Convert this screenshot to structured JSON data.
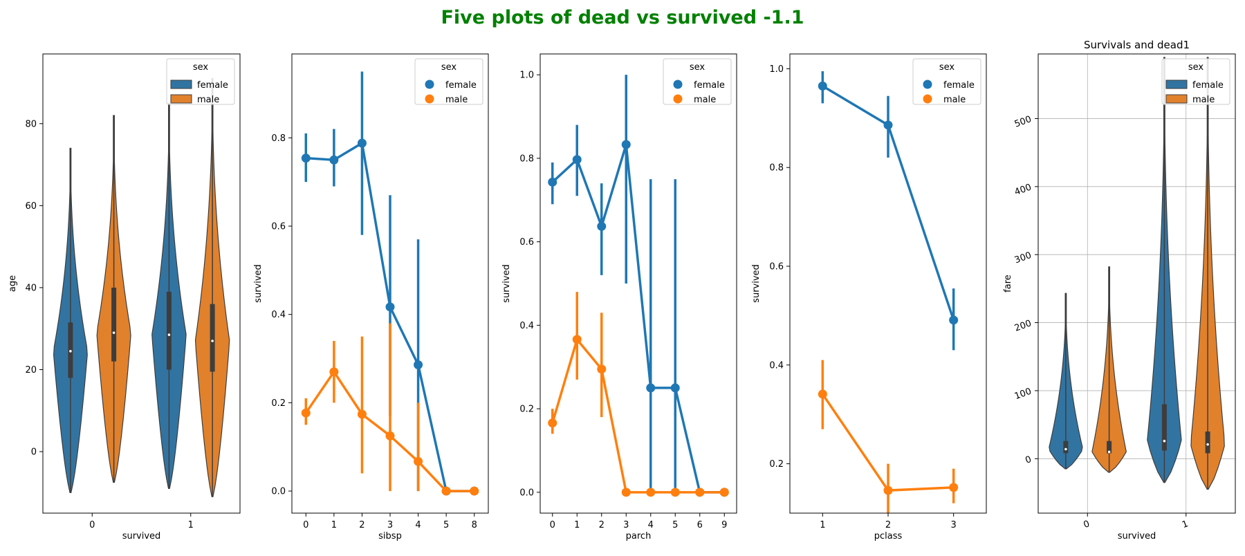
{
  "suptitle": "Five plots of dead vs survived -1.1",
  "colors": {
    "female": "#1f77b4",
    "male": "#ff7f0e",
    "violin_female": "#3274a1",
    "violin_male": "#e1812c",
    "suptitle": "#008000"
  },
  "chart_data": [
    {
      "type": "violin",
      "title": "",
      "xlabel": "survived",
      "ylabel": "age",
      "categories": [
        "0",
        "1"
      ],
      "ylim": [
        -15,
        97
      ],
      "yticks": [
        0,
        20,
        40,
        60,
        80
      ],
      "grid": false,
      "legend": {
        "title": "sex",
        "entries": [
          "female",
          "male"
        ],
        "placement": "top-right"
      },
      "series": [
        {
          "name": "female",
          "values": [
            {
              "x": "0",
              "min": -10,
              "q1": 18,
              "median": 24.5,
              "q3": 31.5,
              "max": 74
            },
            {
              "x": "1",
              "min": -9,
              "q1": 20,
              "median": 28.5,
              "q3": 39,
              "max": 85
            }
          ]
        },
        {
          "name": "male",
          "values": [
            {
              "x": "0",
              "min": -7.5,
              "q1": 22,
              "median": 29,
              "q3": 40,
              "max": 82
            },
            {
              "x": "1",
              "min": -11,
              "q1": 19.5,
              "median": 27,
              "q3": 36,
              "max": 91
            }
          ]
        }
      ]
    },
    {
      "type": "point",
      "title": "",
      "xlabel": "sibsp",
      "ylabel": "survived",
      "categories": [
        "0",
        "1",
        "2",
        "3",
        "4",
        "5",
        "8"
      ],
      "ylim": [
        -0.05,
        0.99
      ],
      "yticks": [
        0.0,
        0.2,
        0.4,
        0.6,
        0.8
      ],
      "grid": false,
      "legend": {
        "title": "sex",
        "entries": [
          "female",
          "male"
        ],
        "placement": "top-right"
      },
      "series": [
        {
          "name": "female",
          "values": [
            0.754,
            0.75,
            0.788,
            0.417,
            0.286,
            0.0,
            0.0
          ],
          "ci": [
            [
              0.7,
              0.81
            ],
            [
              0.69,
              0.82
            ],
            [
              0.58,
              0.95
            ],
            [
              0.17,
              0.67
            ],
            [
              0.0,
              0.57
            ],
            [
              0.0,
              0.0
            ],
            [
              0.0,
              0.0
            ]
          ]
        },
        {
          "name": "male",
          "values": [
            0.177,
            0.27,
            0.174,
            0.125,
            0.067,
            0.0,
            0.0
          ],
          "ci": [
            [
              0.15,
              0.21
            ],
            [
              0.2,
              0.34
            ],
            [
              0.04,
              0.35
            ],
            [
              0.0,
              0.38
            ],
            [
              0.0,
              0.2
            ],
            [
              0.0,
              0.0
            ],
            [
              0.0,
              0.0
            ]
          ]
        }
      ]
    },
    {
      "type": "point",
      "title": "",
      "xlabel": "parch",
      "ylabel": "survived",
      "categories": [
        "0",
        "1",
        "2",
        "3",
        "4",
        "5",
        "6",
        "9"
      ],
      "ylim": [
        -0.05,
        1.05
      ],
      "yticks": [
        0.0,
        0.2,
        0.4,
        0.6,
        0.8,
        1.0
      ],
      "grid": false,
      "legend": {
        "title": "sex",
        "entries": [
          "female",
          "male"
        ],
        "placement": "top-right"
      },
      "series": [
        {
          "name": "female",
          "values": [
            0.743,
            0.797,
            0.637,
            0.833,
            0.25,
            0.25,
            0.0,
            0.0
          ],
          "ci": [
            [
              0.69,
              0.79
            ],
            [
              0.71,
              0.88
            ],
            [
              0.52,
              0.74
            ],
            [
              0.5,
              1.0
            ],
            [
              0.0,
              0.75
            ],
            [
              0.0,
              0.75
            ],
            [
              0.0,
              0.0
            ],
            [
              0.0,
              0.0
            ]
          ]
        },
        {
          "name": "male",
          "values": [
            0.166,
            0.366,
            0.295,
            0.0,
            0.0,
            0.0,
            0.0,
            0.0
          ],
          "ci": [
            [
              0.14,
              0.2
            ],
            [
              0.27,
              0.48
            ],
            [
              0.18,
              0.43
            ],
            [
              0.0,
              0.0
            ],
            [
              0.0,
              0.0
            ],
            [
              0.0,
              0.0
            ],
            [
              0.0,
              0.0
            ],
            [
              0.0,
              0.0
            ]
          ]
        }
      ]
    },
    {
      "type": "point",
      "title": "",
      "xlabel": "pclass",
      "ylabel": "survived",
      "categories": [
        "1",
        "2",
        "3"
      ],
      "ylim": [
        0.1,
        1.03
      ],
      "yticks": [
        0.2,
        0.4,
        0.6,
        0.8,
        1.0
      ],
      "grid": false,
      "legend": {
        "title": "sex",
        "entries": [
          "female",
          "male"
        ],
        "placement": "top-right"
      },
      "series": [
        {
          "name": "female",
          "values": [
            0.965,
            0.886,
            0.491
          ],
          "ci": [
            [
              0.93,
              0.995
            ],
            [
              0.82,
              0.945
            ],
            [
              0.43,
              0.555
            ]
          ]
        },
        {
          "name": "male",
          "values": [
            0.341,
            0.146,
            0.152
          ],
          "ci": [
            [
              0.27,
              0.41
            ],
            [
              0.1,
              0.2
            ],
            [
              0.12,
              0.19
            ]
          ]
        }
      ]
    },
    {
      "type": "violin",
      "title": "Survivals and dead1",
      "xlabel": "survived",
      "ylabel": "fare",
      "categories": [
        "0",
        "1"
      ],
      "ylim": [
        -80,
        595
      ],
      "yticks": [
        0,
        100,
        200,
        300,
        400,
        500
      ],
      "grid": true,
      "legend": {
        "title": "sex",
        "entries": [
          "female",
          "male"
        ],
        "placement": "top-right"
      },
      "series": [
        {
          "name": "female",
          "values": [
            {
              "x": "0",
              "min": -15,
              "q1": 8,
              "median": 14,
              "q3": 26,
              "max": 243
            },
            {
              "x": "1",
              "min": -35,
              "q1": 12,
              "median": 26,
              "q3": 80,
              "max": 590
            }
          ]
        },
        {
          "name": "male",
          "values": [
            {
              "x": "0",
              "min": -20,
              "q1": 8,
              "median": 10,
              "q3": 26,
              "max": 282
            },
            {
              "x": "1",
              "min": -45,
              "q1": 8,
              "median": 21,
              "q3": 40,
              "max": 590
            }
          ]
        }
      ]
    }
  ]
}
